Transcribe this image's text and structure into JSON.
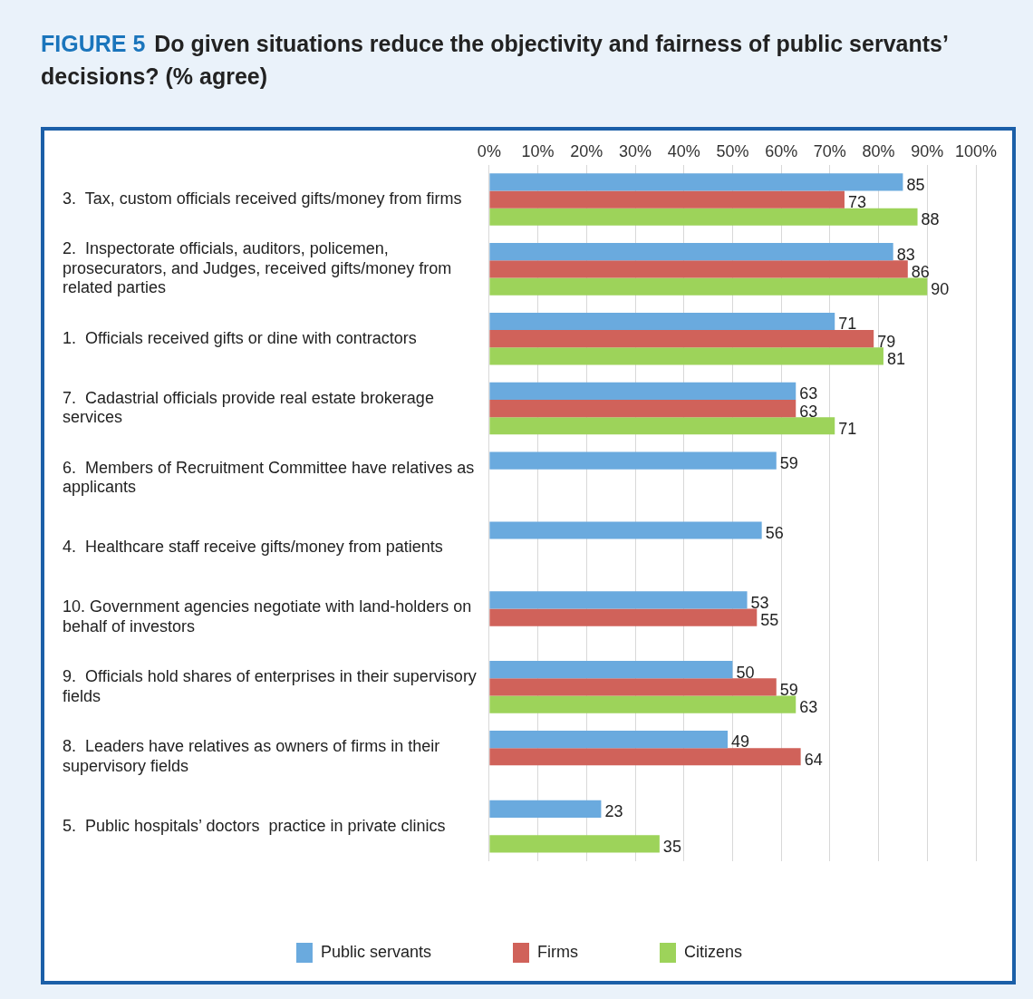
{
  "chart_data": {
    "type": "bar",
    "orientation": "horizontal",
    "title": "FIGURE 5  Do given situations reduce the objectivity and fairness of public servants’ decisions? (% agree)",
    "categories": [
      "3.  Tax, custom officials received gifts/money from firms",
      "2.  Inspectorate officials, auditors, policemen, prosecurators, and Judges, received gifts/money from related parties",
      "1.  Officials received gifts or dine with contractors",
      "7.  Cadastrial officials provide real estate brokerage services",
      "6.  Members of Recruitment Committee have relatives as applicants",
      "4.  Healthcare staff receive gifts/money from patients",
      "10. Government agencies negotiate with land-holders on behalf of investors",
      "9.  Officials hold shares of enterprises in their supervisory fields",
      "8.  Leaders have relatives as owners of firms in their supervisory fields",
      "5.  Public hospitals’ doctors  practice in private clinics"
    ],
    "series": [
      {
        "name": "Public servants",
        "color": "#6aaade",
        "values": [
          85,
          83,
          71,
          63,
          59,
          56,
          53,
          50,
          49,
          23
        ]
      },
      {
        "name": "Firms",
        "color": "#d0625a",
        "values": [
          73,
          86,
          79,
          63,
          null,
          null,
          55,
          59,
          64,
          null
        ]
      },
      {
        "name": "Citizens",
        "color": "#9dd35a",
        "values": [
          88,
          90,
          81,
          71,
          null,
          null,
          null,
          63,
          null,
          35
        ]
      }
    ],
    "xlim": [
      0,
      100
    ],
    "xticks": [
      {
        "value": 0,
        "label": "0%"
      },
      {
        "value": 10,
        "label": "10%"
      },
      {
        "value": 20,
        "label": "20%"
      },
      {
        "value": 30,
        "label": "30%"
      },
      {
        "value": 40,
        "label": "40%"
      },
      {
        "value": 50,
        "label": "50%"
      },
      {
        "value": 60,
        "label": "60%"
      },
      {
        "value": 70,
        "label": "70%"
      },
      {
        "value": 80,
        "label": "80%"
      },
      {
        "value": 90,
        "label": "90%"
      },
      {
        "value": 100,
        "label": "100%"
      }
    ],
    "grid": "x",
    "legend": "bottom",
    "data_labels": true
  }
}
